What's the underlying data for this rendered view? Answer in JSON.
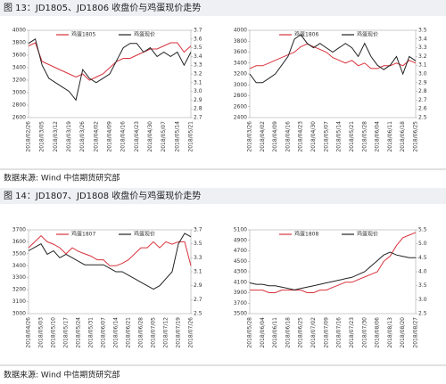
{
  "figures": [
    {
      "title": "图 13：JD1805、JD1806 收盘价与鸡蛋现价走势",
      "source": "数据来源: Wind  中信期货研究部"
    },
    {
      "title": "图 14：JD1807、JD1808 收盘价与鸡蛋现价走势",
      "source": "数据来源: Wind  中信期货研究部"
    }
  ],
  "chart_data": [
    {
      "type": "line",
      "legend": "top",
      "categories": [
        "2018/02/26",
        null,
        "2018/03/05",
        null,
        "2018/03/12",
        null,
        "2018/03/19",
        null,
        "2018/03/26",
        null,
        "2018/04/02",
        null,
        "2018/04/09",
        null,
        "2018/04/16",
        null,
        "2018/04/23",
        null,
        "2018/04/30",
        null,
        "2018/05/07",
        null,
        "2018/05/14",
        null,
        "2018/05/21"
      ],
      "ylim": [
        2600,
        4000
      ],
      "yticks": [
        2600,
        2800,
        3000,
        3200,
        3400,
        3600,
        3800,
        4000
      ],
      "y2lim": [
        2.7,
        3.7
      ],
      "y2ticks": [
        2.7,
        2.8,
        2.9,
        {
          "value": 3,
          "label": "3.0"
        },
        3.1,
        3.2,
        3.3,
        3.4,
        3.5,
        3.6,
        3.7
      ],
      "series": [
        {
          "name": "鸡蛋1805",
          "color": "#d9323c",
          "values": [
            3750,
            3800,
            3500,
            3450,
            3400,
            3350,
            3300,
            3250,
            3300,
            3200,
            3250,
            3300,
            3400,
            3500,
            3550,
            3550,
            3600,
            3650,
            3700,
            3700,
            3750,
            3800,
            3800,
            3650,
            3750
          ]
        },
        {
          "name": "鸡蛋现价",
          "color": "#222222",
          "axis": "y2",
          "values": [
            3.55,
            3.6,
            3.3,
            3.15,
            3.1,
            3.05,
            3.0,
            2.9,
            3.25,
            3.15,
            3.1,
            3.15,
            3.2,
            3.35,
            3.5,
            3.55,
            3.55,
            3.45,
            3.5,
            3.4,
            3.45,
            3.4,
            3.45,
            3.3,
            3.45
          ]
        }
      ]
    },
    {
      "type": "line",
      "legend": "top",
      "categories": [
        "2018/03/26",
        null,
        "2018/04/02",
        null,
        "2018/04/09",
        null,
        "2018/04/16",
        null,
        "2018/04/23",
        null,
        "2018/04/30",
        null,
        "2018/05/07",
        null,
        "2018/05/14",
        null,
        "2018/05/21",
        null,
        "2018/05/28",
        null,
        "2018/06/04",
        null,
        "2018/06/11",
        null,
        "2018/06/18",
        null,
        "2018/06/25"
      ],
      "ylim": [
        2400,
        4000
      ],
      "yticks": [
        2400,
        2600,
        2800,
        3000,
        3200,
        3400,
        3600,
        3800,
        4000
      ],
      "y2lim": [
        2.5,
        3.5
      ],
      "y2ticks": [
        2.5,
        2.6,
        2.7,
        2.8,
        2.9,
        {
          "value": 3,
          "label": "3.0"
        },
        3.1,
        3.2,
        3.3,
        3.4,
        3.5
      ],
      "series": [
        {
          "name": "鸡蛋1806",
          "color": "#d9323c",
          "values": [
            3300,
            3350,
            3350,
            3400,
            3450,
            3500,
            3550,
            3600,
            3700,
            3750,
            3700,
            3650,
            3600,
            3500,
            3450,
            3400,
            3450,
            3350,
            3400,
            3300,
            3300,
            3350,
            3350,
            3400,
            3350,
            3450,
            3400
          ]
        },
        {
          "name": "鸡蛋现价",
          "color": "#222222",
          "axis": "y2",
          "values": [
            3.0,
            2.9,
            2.9,
            2.95,
            3.0,
            3.1,
            3.2,
            3.4,
            3.45,
            3.35,
            3.3,
            3.35,
            3.3,
            3.25,
            3.3,
            3.35,
            3.3,
            3.2,
            3.35,
            3.2,
            3.1,
            3.05,
            3.1,
            3.2,
            3.0,
            3.2,
            3.15
          ]
        }
      ]
    },
    {
      "type": "line",
      "legend": "top",
      "categories": [
        "2018/04/26",
        null,
        "2018/05/03",
        null,
        "2018/05/10",
        null,
        "2018/05/17",
        null,
        "2018/05/24",
        null,
        "2018/05/31",
        null,
        "2018/06/07",
        null,
        "2018/06/14",
        null,
        "2018/06/21",
        null,
        "2018/06/28",
        null,
        "2018/07/05",
        null,
        "2018/07/12",
        null,
        "2018/07/19",
        null,
        "2018/07/26"
      ],
      "ylim": [
        3000,
        3700
      ],
      "yticks": [
        3000,
        3100,
        3200,
        3300,
        3400,
        3500,
        3600,
        3700
      ],
      "y2lim": [
        2.5,
        3.7
      ],
      "y2ticks": [
        2.5,
        2.7,
        2.9,
        3.1,
        3.3,
        3.5,
        3.7
      ],
      "series": [
        {
          "name": "鸡蛋1807",
          "color": "#d9323c",
          "values": [
            3550,
            3600,
            3650,
            3600,
            3580,
            3550,
            3500,
            3550,
            3520,
            3500,
            3480,
            3450,
            3450,
            3400,
            3400,
            3420,
            3450,
            3500,
            3550,
            3550,
            3600,
            3550,
            3600,
            3580,
            3600,
            3600,
            3400
          ]
        },
        {
          "name": "鸡蛋现价",
          "color": "#222222",
          "axis": "y2",
          "values": [
            3.4,
            3.45,
            3.5,
            3.35,
            3.4,
            3.3,
            3.35,
            3.3,
            3.25,
            3.2,
            3.2,
            3.2,
            3.2,
            3.15,
            3.1,
            3.1,
            3.05,
            3.0,
            2.95,
            2.9,
            2.85,
            2.9,
            3.0,
            3.1,
            3.5,
            3.65,
            3.6
          ]
        }
      ]
    },
    {
      "type": "line",
      "legend": "top",
      "categories": [
        "2018/05/28",
        null,
        "2018/06/04",
        null,
        "2018/06/11",
        null,
        "2018/06/18",
        null,
        "2018/06/25",
        null,
        "2018/07/02",
        null,
        "2018/07/09",
        null,
        "2018/07/16",
        null,
        "2018/07/23",
        null,
        "2018/07/30",
        null,
        "2018/08/06",
        null,
        "2018/08/13",
        null,
        "2018/08/20",
        null,
        "2018/08/27"
      ],
      "ylim": [
        3500,
        5100
      ],
      "yticks": [
        3500,
        3700,
        3900,
        4100,
        4300,
        4500,
        4700,
        4900,
        5100
      ],
      "y2lim": [
        2.5,
        5.5
      ],
      "y2ticks": [
        2.5,
        {
          "value": 3,
          "label": "3.0"
        },
        3.5,
        {
          "value": 4,
          "label": "4.0"
        },
        4.5,
        {
          "value": 5,
          "label": "5.0"
        },
        5.5
      ],
      "series": [
        {
          "name": "鸡蛋1808",
          "color": "#d9323c",
          "values": [
            3950,
            3950,
            3950,
            3900,
            3900,
            3950,
            3950,
            3950,
            3950,
            3900,
            3900,
            3950,
            3950,
            4000,
            4050,
            4100,
            4100,
            4150,
            4200,
            4250,
            4300,
            4500,
            4600,
            4800,
            4950,
            5000,
            5050
          ]
        },
        {
          "name": "鸡蛋现价",
          "color": "#222222",
          "axis": "y2",
          "values": [
            3.6,
            3.55,
            3.55,
            3.5,
            3.5,
            3.45,
            3.4,
            3.35,
            3.4,
            3.45,
            3.5,
            3.55,
            3.6,
            3.65,
            3.7,
            3.75,
            3.8,
            3.9,
            4.0,
            4.2,
            4.4,
            4.6,
            4.7,
            4.6,
            4.55,
            4.5,
            4.5
          ]
        }
      ]
    }
  ]
}
